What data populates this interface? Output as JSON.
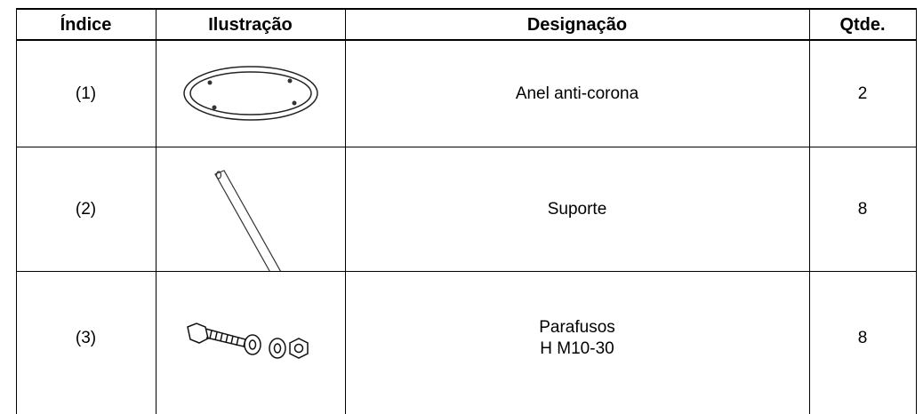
{
  "header": {
    "columns": [
      "Índice",
      "Ilustração",
      "Designação",
      "Qtde."
    ]
  },
  "table": {
    "rows": [
      {
        "index": "(1)",
        "designation": [
          "Anel anti-corona"
        ],
        "quantity": 2
      },
      {
        "index": "(2)",
        "designation": [
          "Suporte"
        ],
        "quantity": 8
      },
      {
        "index": "(3)",
        "designation": [
          "Parafusos",
          "H M10-30"
        ],
        "quantity": 8
      }
    ]
  }
}
